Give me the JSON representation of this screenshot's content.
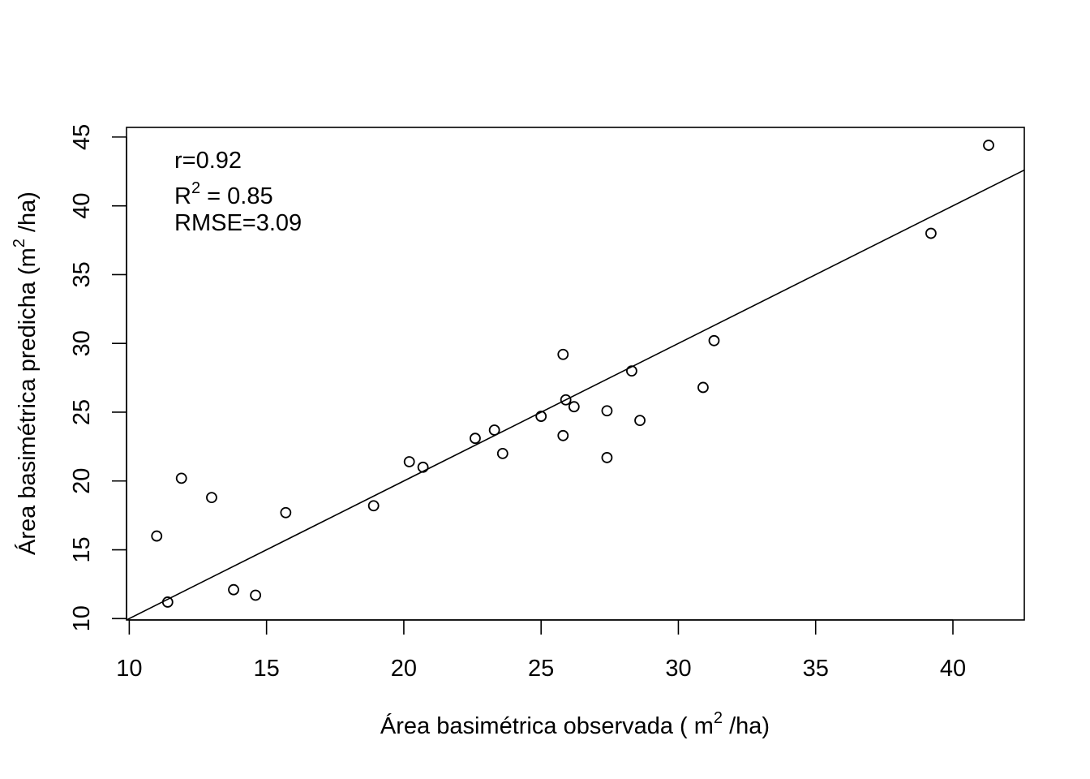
{
  "chart_data": {
    "type": "scatter",
    "xlabel": {
      "prefix": "Área basimétrica observada ( m",
      "sup": "2",
      "suffix": " /ha)"
    },
    "ylabel": {
      "prefix": "Área basimétrica predicha (m",
      "sup": "2",
      "suffix": " /ha)"
    },
    "xlim": [
      9.9,
      42.6
    ],
    "ylim": [
      9.9,
      45.7
    ],
    "xticks": [
      10,
      15,
      20,
      25,
      30,
      35,
      40
    ],
    "yticks": [
      10,
      15,
      20,
      25,
      30,
      35,
      40,
      45
    ],
    "annotations": {
      "r": "r=0.92",
      "r2_base": "R",
      "r2_sup": "2",
      "r2_value": " = 0.85",
      "rmse": "RMSE=3.09"
    },
    "fit_line": {
      "intercept": 0.0,
      "slope": 1.0
    },
    "points": [
      {
        "x": 11.0,
        "y": 16.0
      },
      {
        "x": 11.4,
        "y": 11.2
      },
      {
        "x": 11.9,
        "y": 20.2
      },
      {
        "x": 13.0,
        "y": 18.8
      },
      {
        "x": 13.8,
        "y": 12.1
      },
      {
        "x": 14.6,
        "y": 11.7
      },
      {
        "x": 15.7,
        "y": 17.7
      },
      {
        "x": 18.9,
        "y": 18.2
      },
      {
        "x": 20.2,
        "y": 21.4
      },
      {
        "x": 20.7,
        "y": 21.0
      },
      {
        "x": 22.6,
        "y": 23.1
      },
      {
        "x": 23.3,
        "y": 23.7
      },
      {
        "x": 23.6,
        "y": 22.0
      },
      {
        "x": 25.0,
        "y": 24.7
      },
      {
        "x": 25.8,
        "y": 29.2
      },
      {
        "x": 25.8,
        "y": 23.3
      },
      {
        "x": 25.9,
        "y": 25.9
      },
      {
        "x": 26.2,
        "y": 25.4
      },
      {
        "x": 27.4,
        "y": 25.1
      },
      {
        "x": 27.4,
        "y": 21.7
      },
      {
        "x": 28.3,
        "y": 28.0
      },
      {
        "x": 28.6,
        "y": 24.4
      },
      {
        "x": 30.9,
        "y": 26.8
      },
      {
        "x": 31.3,
        "y": 30.2
      },
      {
        "x": 39.2,
        "y": 38.0
      },
      {
        "x": 41.3,
        "y": 44.4
      }
    ]
  }
}
